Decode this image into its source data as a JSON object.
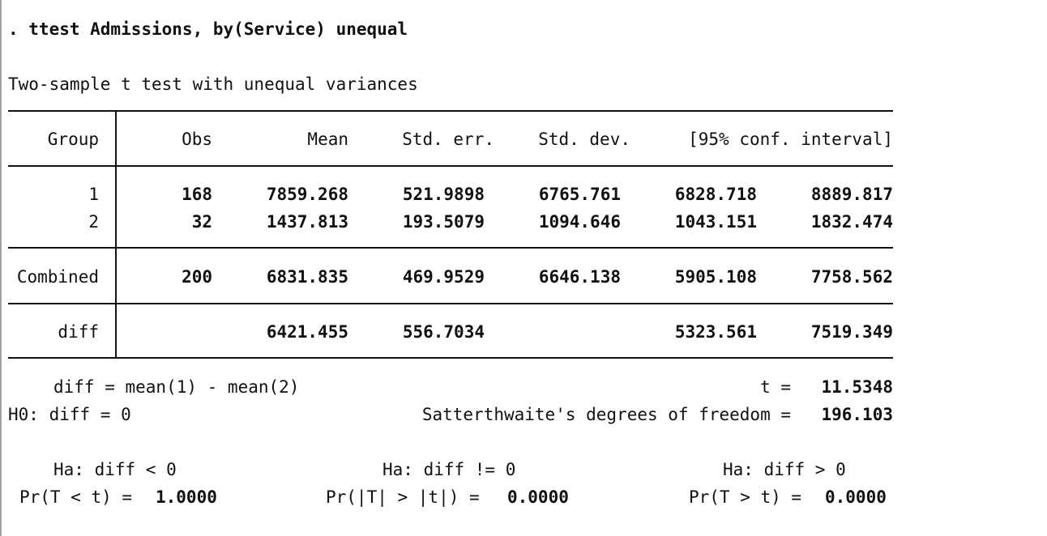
{
  "command": ". ttest Admissions, by(Service) unequal",
  "title": "Two-sample t test with unequal variances",
  "header": {
    "group": "Group",
    "obs": "Obs",
    "mean": "Mean",
    "std_err": "Std. err.",
    "std_dev": "Std. dev.",
    "ci": "[95% conf. interval]"
  },
  "rows": [
    {
      "group": "1",
      "obs": "168",
      "mean": "7859.268",
      "std_err": "521.9898",
      "std_dev": "6765.761",
      "ci_low": "6828.718",
      "ci_high": "8889.817"
    },
    {
      "group": "2",
      "obs": "32",
      "mean": "1437.813",
      "std_err": "193.5079",
      "std_dev": "1094.646",
      "ci_low": "1043.151",
      "ci_high": "1832.474"
    }
  ],
  "combined": {
    "group": "Combined",
    "obs": "200",
    "mean": "6831.835",
    "std_err": "469.9529",
    "std_dev": "6646.138",
    "ci_low": "5905.108",
    "ci_high": "7758.562"
  },
  "diff": {
    "group": "diff",
    "mean": "6421.455",
    "std_err": "556.7034",
    "ci_low": "5323.561",
    "ci_high": "7519.349"
  },
  "stats": {
    "diff_def": "diff = mean(1) - mean(2)",
    "t_label": "t =",
    "t_value": "11.5348",
    "h0": "H0: diff = 0",
    "df_label": "Satterthwaite's degrees of freedom =",
    "df_value": "196.103"
  },
  "hypotheses": {
    "lt_label": "Ha: diff < 0",
    "ne_label": "Ha: diff != 0",
    "gt_label": "Ha: diff > 0",
    "lt_prob_label": "Pr(T < t) =",
    "lt_prob_value": "1.0000",
    "ne_prob_label": "Pr(|T| > |t|) =",
    "ne_prob_value": "0.0000",
    "gt_prob_label": "Pr(T > t) =",
    "gt_prob_value": "0.0000"
  }
}
